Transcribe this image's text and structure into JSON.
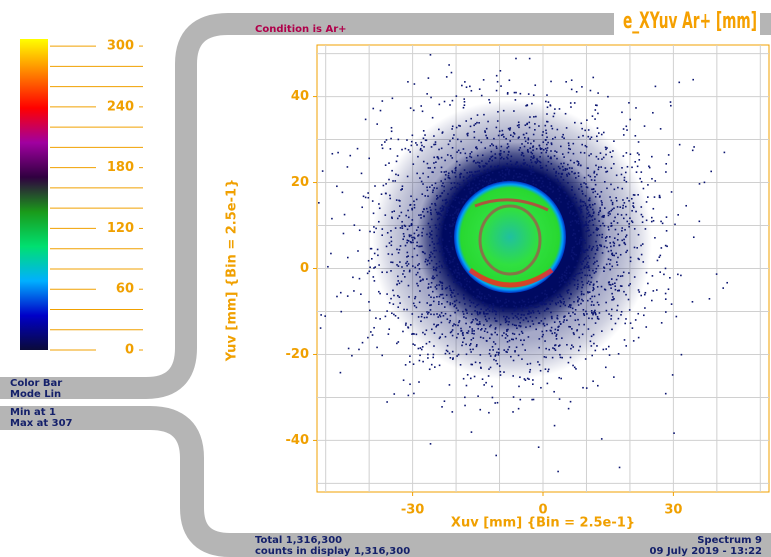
{
  "chart_data": {
    "type": "heatmap",
    "title": "e_XYuv Ar+ [mm]",
    "subtitle": "Condition is Ar+",
    "x_label": "Xuv [mm] {Bin = 2.5e-1}",
    "y_label": "Yuv [mm] {Bin = 2.5e-1}",
    "xlim": [
      -52,
      52
    ],
    "xticks": [
      -30,
      0,
      30
    ],
    "xgrid": [
      -50,
      -40,
      -30,
      -20,
      -10,
      0,
      10,
      20,
      30,
      40,
      50
    ],
    "ylim": [
      -52,
      52
    ],
    "yticks": [
      -40,
      -20,
      0,
      20,
      40
    ],
    "ygrid": [
      -50,
      -40,
      -30,
      -20,
      -10,
      0,
      10,
      20,
      30,
      40,
      50
    ],
    "grid": true,
    "colorbar": {
      "lim": [
        0,
        307
      ],
      "ticks": [
        0,
        60,
        120,
        180,
        240,
        300
      ],
      "minor_ticks": [
        20,
        40,
        80,
        100,
        140,
        160,
        200,
        220,
        260,
        280
      ],
      "colors": [
        "#0a0a3a",
        "#0000c8",
        "#00b0ff",
        "#00e070",
        "#1a9a1a",
        "#300040",
        "#a000a0",
        "#ff0000",
        "#ff8000",
        "#ffff00"
      ],
      "mode_lines": [
        "Color Bar",
        "Mode Lin"
      ],
      "min_text": "Min at 1",
      "max_text": "Max at 307"
    },
    "footer": {
      "total": "Total 1,316,300",
      "counts": "counts in display 1,316,300",
      "spectrum": "Spectrum 9",
      "date": "09 July 2019 - 13:22"
    }
  }
}
